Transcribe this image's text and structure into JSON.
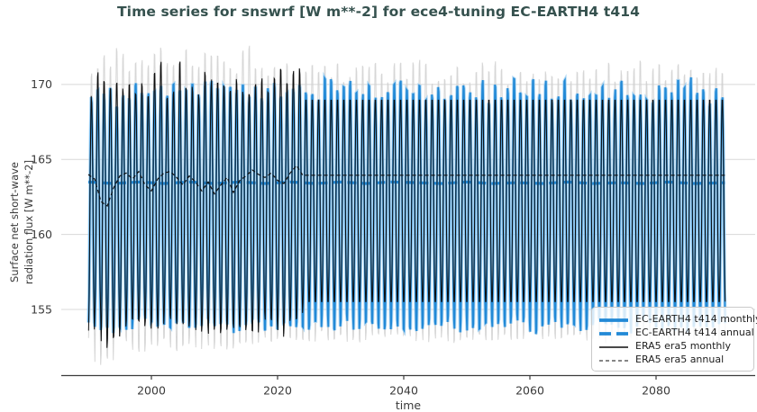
{
  "chart_data": {
    "type": "line",
    "title": "Time series for snswrf [W m**-2] for ece4-tuning EC-EARTH4 t414",
    "xlabel": "time",
    "ylabel": "Surface net short-wave radiation flux [W m**-2]",
    "ylabel_line1": "Surface net short-wave",
    "ylabel_line2": "radiation flux [W m**-2]",
    "x_ticks": [
      2000,
      2020,
      2040,
      2060,
      2080
    ],
    "y_ticks": [
      155,
      160,
      165,
      170
    ],
    "xlim": [
      1986.5,
      2093.5
    ],
    "ylim": [
      150.4,
      172.9
    ],
    "x_range_years": [
      1990,
      2090
    ],
    "grid": "horizontal",
    "colors": {
      "ec_earth_blue": "#2289d6",
      "ec_earth_glow": "#9dcff2",
      "era5_black": "#0d0d0d",
      "shadow_gray": "#cfcfcf",
      "grid": "#d8d8d8",
      "axis": "#3c3c3c",
      "title": "#35514e",
      "tick_text": "#3a3a3a"
    },
    "legend": {
      "position": "lower right",
      "entries": [
        {
          "label": "EC-EARTH4 t414 monthly",
          "color": "#2289d6",
          "dash": "",
          "width": 3.8
        },
        {
          "label": "EC-EARTH4 t414 annual",
          "color": "#2289d6",
          "dash": "13 6",
          "width": 3.8
        },
        {
          "label": "ERA5 era5 monthly",
          "color": "#0d0d0d",
          "dash": "",
          "width": 1.4
        },
        {
          "label": "ERA5 era5 annual",
          "color": "#0d0d0d",
          "dash": "4 3",
          "width": 1.1
        }
      ]
    },
    "series": [
      {
        "name": "EC-EARTH4 t414 monthly",
        "style": "solid",
        "color": "#2289d6",
        "description": "Monthly means 1990-2090; seasonal cycle between ~153.5 and ~170.5 W m**-2, typical summer peaks ~169.7, winter troughs ~154."
      },
      {
        "name": "EC-EARTH4 t414 annual",
        "style": "dashed",
        "color": "#2289d6",
        "description": "Annual mean, nearly constant ~163.4-163.5 over 1990-2090."
      },
      {
        "name": "ERA5 era5 monthly",
        "style": "solid",
        "color": "#0d0d0d",
        "description": "Monthly means; interannually varying 1990-2023 with peaks up to ~171.2 and deep 1992 trough ~153; repeating climatology (peaks ~169.2, troughs ~155.2) after ~2024."
      },
      {
        "name": "ERA5 era5 annual",
        "style": "dashed",
        "color": "#0d0d0d",
        "description": "Annual mean wiggling 162-164.6 over 1990-2023 (dip to ~161.9 in 1992-93), constant ~163.95 afterwards."
      },
      {
        "name": "unlabeled gray monthly shadow",
        "style": "solid",
        "color": "#cfcfcf",
        "description": "Faint gray monthly spikes behind the data with larger amplitude (peaks ~171-172.6, troughs ~151.8-153.5), full 1990-2090 range, not in legend."
      }
    ],
    "monthly_render": [
      {
        "id": "gray-shadow",
        "seed": 97,
        "color": "#cfcfcf",
        "width": 1.0,
        "opacity": 0.85,
        "mean": 161.9,
        "amp_peak": 9.1,
        "amp_trough": 8.6,
        "peak_jitter": 0.8,
        "trough_jitter": 0.8,
        "noise": 0.2,
        "pre": {
          "year": 2016,
          "peak_boost": 1.2,
          "trough_boost": 1.0
        },
        "events": {
          "1991": 0.9,
          "1992": 1.4,
          "1993": 0.8
        }
      },
      {
        "id": "ec-earth4-monthly",
        "seed": 11,
        "color": "#2289d6",
        "width": 1.8,
        "glow": {
          "color": "#9dcff2",
          "width": 3.8,
          "opacity": 0.8
        },
        "mean": 161.9,
        "amp_peak": 7.8,
        "amp_trough": 7.7,
        "peak_jitter": 0.8,
        "trough_jitter": 0.9,
        "noise": 0.3
      },
      {
        "id": "era5-monthly",
        "seed": 5,
        "color": "#0d0d0d",
        "width": 1.0,
        "mean": 161.9,
        "amp_peak": 7.4,
        "amp_trough": 7.2,
        "peak_jitter": 0.9,
        "trough_jitter": 0.7,
        "noise": 0.3,
        "pre": {
          "year": 2024,
          "peak_boost": 1.8,
          "trough_boost": 1.2
        },
        "clim_after": 2024,
        "clim": {
          "amp_peak": 7.3,
          "amp_trough": 6.6
        },
        "events": {
          "1992": 1.8,
          "1993": 1.0
        }
      }
    ],
    "annual_render": [
      {
        "id": "ec-earth4-annual",
        "color": "#2289d6",
        "width": 3.2,
        "dash": "10 6",
        "points": [
          [
            1990,
            163.5
          ],
          [
            1994,
            163.4
          ],
          [
            1998,
            163.5
          ],
          [
            2002,
            163.4
          ],
          [
            2006,
            163.5
          ],
          [
            2010,
            163.4
          ],
          [
            2014,
            163.5
          ],
          [
            2018,
            163.4
          ],
          [
            2022,
            163.5
          ],
          [
            2026,
            163.4
          ],
          [
            2030,
            163.5
          ],
          [
            2034,
            163.4
          ],
          [
            2038,
            163.5
          ],
          [
            2042,
            163.45
          ],
          [
            2046,
            163.4
          ],
          [
            2050,
            163.5
          ],
          [
            2054,
            163.4
          ],
          [
            2058,
            163.45
          ],
          [
            2062,
            163.4
          ],
          [
            2066,
            163.5
          ],
          [
            2070,
            163.4
          ],
          [
            2074,
            163.45
          ],
          [
            2078,
            163.4
          ],
          [
            2082,
            163.5
          ],
          [
            2086,
            163.4
          ],
          [
            2090.9,
            163.45
          ]
        ]
      },
      {
        "id": "era5-annual",
        "color": "#111111",
        "width": 1.2,
        "dash": "4 3",
        "points": [
          [
            1990,
            164.0
          ],
          [
            1991,
            163.7
          ],
          [
            1992,
            162.2
          ],
          [
            1993,
            161.9
          ],
          [
            1994,
            163.1
          ],
          [
            1995,
            163.9
          ],
          [
            1996,
            164.1
          ],
          [
            1997,
            163.7
          ],
          [
            1998,
            164.2
          ],
          [
            1999,
            163.3
          ],
          [
            2000,
            162.9
          ],
          [
            2001,
            163.7
          ],
          [
            2002,
            164.1
          ],
          [
            2003,
            164.2
          ],
          [
            2004,
            163.8
          ],
          [
            2005,
            163.3
          ],
          [
            2006,
            163.9
          ],
          [
            2007,
            163.5
          ],
          [
            2008,
            162.9
          ],
          [
            2009,
            163.5
          ],
          [
            2010,
            162.7
          ],
          [
            2011,
            163.3
          ],
          [
            2012,
            163.8
          ],
          [
            2013,
            162.8
          ],
          [
            2014,
            163.6
          ],
          [
            2015,
            163.9
          ],
          [
            2016,
            164.3
          ],
          [
            2017,
            164.0
          ],
          [
            2018,
            163.8
          ],
          [
            2019,
            164.1
          ],
          [
            2020,
            163.6
          ],
          [
            2021,
            163.4
          ],
          [
            2022,
            164.1
          ],
          [
            2023,
            164.6
          ],
          [
            2024,
            163.95
          ],
          [
            2090.9,
            163.95
          ]
        ]
      }
    ]
  }
}
